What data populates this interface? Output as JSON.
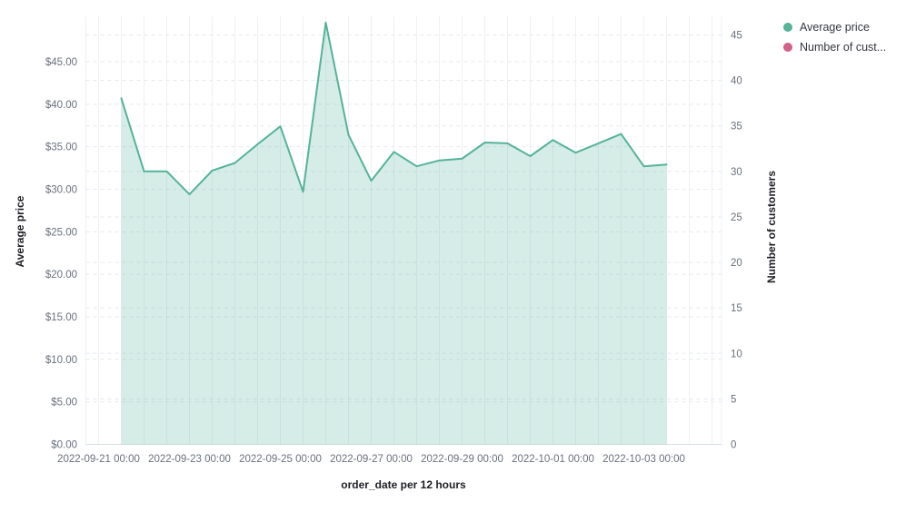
{
  "legend": {
    "position": "top-right",
    "items": [
      {
        "label": "Average price",
        "color": "#54B399"
      },
      {
        "label": "Number of cust...",
        "color": "#D36086"
      }
    ]
  },
  "chart_data": {
    "type": "area",
    "title": "",
    "grid": true,
    "x_axis": {
      "label": "order_date per 12 hours",
      "tick_labels": [
        "2022-09-21 00:00",
        "2022-09-23 00:00",
        "2022-09-25 00:00",
        "2022-09-27 00:00",
        "2022-09-29 00:00",
        "2022-10-01 00:00",
        "2022-10-03 00:00"
      ]
    },
    "y_axis_left": {
      "label": "Average price",
      "tick_values": [
        0,
        5,
        10,
        15,
        20,
        25,
        30,
        35,
        40,
        45
      ],
      "tick_labels": [
        "$0.00",
        "$5.00",
        "$10.00",
        "$15.00",
        "$20.00",
        "$25.00",
        "$30.00",
        "$35.00",
        "$40.00",
        "$45.00"
      ],
      "range": [
        0,
        50
      ]
    },
    "y_axis_right": {
      "label": "Number of customers",
      "tick_values": [
        0,
        5,
        10,
        15,
        20,
        25,
        30,
        35,
        40,
        45
      ],
      "tick_labels": [
        "0",
        "5",
        "10",
        "15",
        "20",
        "25",
        "30",
        "35",
        "40",
        "45"
      ],
      "range": [
        0,
        47
      ]
    },
    "series": [
      {
        "name": "Average price",
        "axis": "left",
        "color": "#54B399",
        "fill_opacity": 0.24,
        "x": [
          "2022-09-21 12:00",
          "2022-09-22 00:00",
          "2022-09-22 12:00",
          "2022-09-23 00:00",
          "2022-09-23 12:00",
          "2022-09-24 00:00",
          "2022-09-24 12:00",
          "2022-09-25 00:00",
          "2022-09-25 12:00",
          "2022-09-26 00:00",
          "2022-09-26 12:00",
          "2022-09-27 00:00",
          "2022-09-27 12:00",
          "2022-09-28 00:00",
          "2022-09-28 12:00",
          "2022-09-29 00:00",
          "2022-09-29 12:00",
          "2022-09-30 00:00",
          "2022-09-30 12:00",
          "2022-10-01 00:00",
          "2022-10-01 12:00",
          "2022-10-02 00:00",
          "2022-10-02 12:00",
          "2022-10-03 00:00",
          "2022-10-03 12:00"
        ],
        "values": [
          40.7,
          32.1,
          32.1,
          29.4,
          32.2,
          33.1,
          35.3,
          37.4,
          29.7,
          49.6,
          36.4,
          31.0,
          34.4,
          32.7,
          33.4,
          33.6,
          35.5,
          35.4,
          33.9,
          35.8,
          34.3,
          35.4,
          36.5,
          32.7,
          32.9
        ]
      },
      {
        "name": "Number of customers",
        "axis": "right",
        "color": "#D36086",
        "values": []
      }
    ]
  }
}
